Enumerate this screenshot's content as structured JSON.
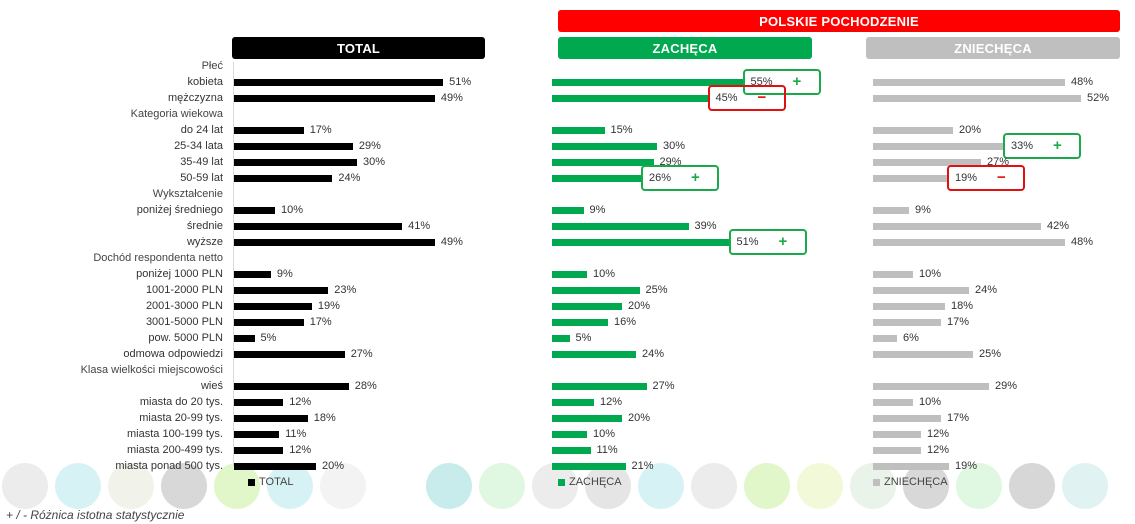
{
  "headers": {
    "group": "POLSKIE POCHODZENIE",
    "total": "TOTAL",
    "encourages": "ZACHĘCA",
    "discourages": "ZNIECHĘCA"
  },
  "colors": {
    "total": "#000000",
    "encourages": "#00a84f",
    "discourages": "#bfbfbf",
    "group_header": "#ff0000",
    "plus": "#1aaa4a",
    "minus": "#e01010"
  },
  "legend": [
    {
      "label": "TOTAL",
      "color": "#000000"
    },
    {
      "label": "ZACHĘCA",
      "color": "#00a84f"
    },
    {
      "label": "ZNIECHĘCA",
      "color": "#bfbfbf"
    }
  ],
  "footnote": "+ / - Różnica istotna statystycznie",
  "chart_data": {
    "type": "bar",
    "orientation": "horizontal",
    "unit": "%",
    "xlim": [
      0,
      100
    ],
    "categories": [
      "Płeć",
      "kobieta",
      "mężczyzna",
      "Kategoria wiekowa",
      "do 24 lat",
      "25-34 lata",
      "35-49 lat",
      "50-59 lat",
      "Wykształcenie",
      "poniżej średniego",
      "średnie",
      "wyższe",
      "Dochód respondenta netto",
      "poniżej 1000 PLN",
      "1001-2000 PLN",
      "2001-3000 PLN",
      "3001-5000 PLN",
      "pow. 5000 PLN",
      "odmowa odpowiedzi",
      "Klasa wielkości miejscowości",
      "wieś",
      "miasta do 20 tys.",
      "miasta 20-99 tys.",
      "miasta 100-199 tys.",
      "miasta 200-499 tys.",
      "miasta ponad 500 tys."
    ],
    "group_headers": [
      "Płeć",
      "Kategoria wiekowa",
      "Wykształcenie",
      "Dochód respondenta netto",
      "Klasa wielkości miejscowości"
    ],
    "series": [
      {
        "name": "TOTAL",
        "values": [
          null,
          51,
          49,
          null,
          17,
          29,
          30,
          24,
          null,
          10,
          41,
          49,
          null,
          9,
          23,
          19,
          17,
          5,
          27,
          null,
          28,
          12,
          18,
          11,
          12,
          20
        ]
      },
      {
        "name": "ZACHĘCA",
        "values": [
          null,
          55,
          45,
          null,
          15,
          30,
          29,
          26,
          null,
          9,
          39,
          51,
          null,
          10,
          25,
          20,
          16,
          5,
          24,
          null,
          27,
          12,
          20,
          10,
          11,
          21
        ]
      },
      {
        "name": "ZNIECHĘCA",
        "values": [
          null,
          48,
          52,
          null,
          20,
          33,
          27,
          19,
          null,
          9,
          42,
          48,
          null,
          10,
          24,
          18,
          17,
          6,
          25,
          null,
          29,
          10,
          17,
          12,
          12,
          19
        ]
      }
    ],
    "significance": [
      {
        "series": 1,
        "category": 1,
        "sign": "+"
      },
      {
        "series": 1,
        "category": 2,
        "sign": "−"
      },
      {
        "series": 1,
        "category": 7,
        "sign": "+"
      },
      {
        "series": 1,
        "category": 11,
        "sign": "+"
      },
      {
        "series": 2,
        "category": 5,
        "sign": "+"
      },
      {
        "series": 2,
        "category": 7,
        "sign": "−"
      }
    ]
  }
}
